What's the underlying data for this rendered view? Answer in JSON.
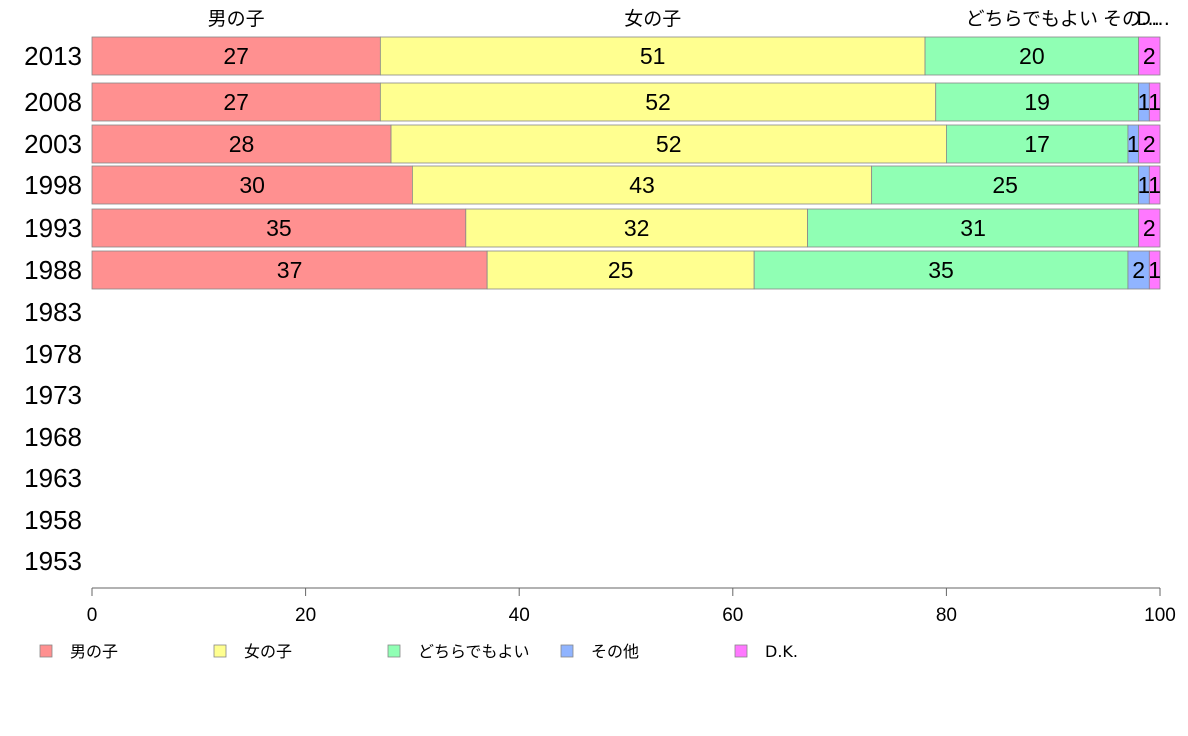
{
  "chart_data": {
    "type": "bar",
    "orientation": "horizontal",
    "stacked": true,
    "categories": [
      "2013",
      "2008",
      "2003",
      "1998",
      "1993",
      "1988",
      "1983",
      "1978",
      "1973",
      "1968",
      "1963",
      "1958",
      "1953"
    ],
    "series": [
      {
        "name": "男の子",
        "color": "#ff9090",
        "values": [
          27,
          27,
          28,
          30,
          35,
          37,
          null,
          null,
          null,
          null,
          null,
          null,
          null
        ]
      },
      {
        "name": "女の子",
        "color": "#ffff90",
        "values": [
          51,
          52,
          52,
          43,
          32,
          25,
          null,
          null,
          null,
          null,
          null,
          null,
          null
        ]
      },
      {
        "name": "どちらでもよい",
        "color": "#90ffb4",
        "values": [
          20,
          19,
          17,
          25,
          31,
          35,
          null,
          null,
          null,
          null,
          null,
          null,
          null
        ]
      },
      {
        "name": "その他",
        "color": "#90b4ff",
        "values": [
          0,
          1,
          1,
          1,
          0,
          2,
          null,
          null,
          null,
          null,
          null,
          null,
          null
        ]
      },
      {
        "name": "D.K.",
        "color": "#ff78ff",
        "values": [
          2,
          1,
          2,
          1,
          2,
          1,
          null,
          null,
          null,
          null,
          null,
          null,
          null
        ]
      }
    ],
    "data_labels": [
      [
        "27",
        "51",
        "20",
        "",
        "2"
      ],
      [
        "27",
        "52",
        "19",
        "1",
        "1"
      ],
      [
        "28",
        "52",
        "17",
        "1",
        "2"
      ],
      [
        "30",
        "43",
        "25",
        "1",
        "1"
      ],
      [
        "35",
        "32",
        "31",
        "",
        "2"
      ],
      [
        "37",
        "25",
        "35",
        "2",
        "1"
      ]
    ],
    "header_labels": [
      "男の子",
      "女の子",
      "どちらでもよい",
      "その…",
      "D…"
    ],
    "xlim": [
      0,
      100
    ],
    "xticks": [
      "0",
      "20",
      "40",
      "60",
      "80",
      "100"
    ],
    "grid": false,
    "legend_position": "bottom"
  }
}
